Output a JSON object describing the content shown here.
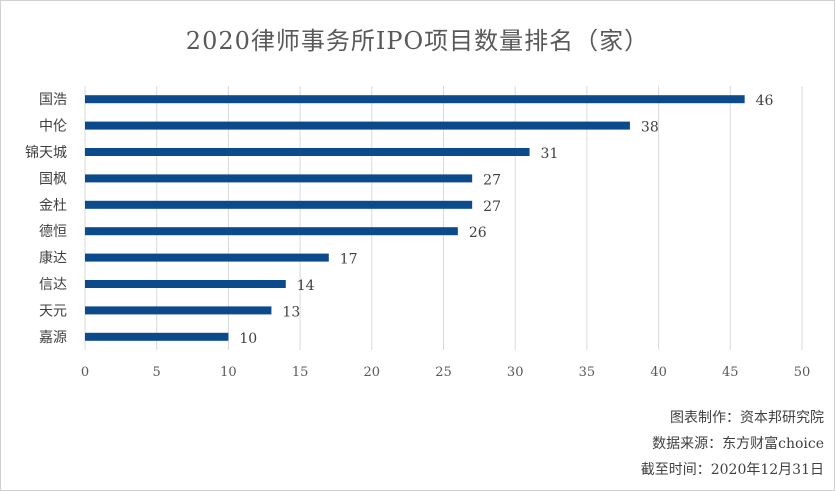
{
  "chart_data": {
    "type": "bar",
    "orientation": "horizontal",
    "title": "2020律师事务所IPO项目数量排名（家）",
    "categories": [
      "国浩",
      "中伦",
      "锦天城",
      "国枫",
      "金杜",
      "德恒",
      "康达",
      "信达",
      "天元",
      "嘉源"
    ],
    "values": [
      46,
      38,
      31,
      27,
      27,
      26,
      17,
      14,
      13,
      10
    ],
    "xlim": [
      0,
      50
    ],
    "xticks": [
      0,
      5,
      10,
      15,
      20,
      25,
      30,
      35,
      40,
      45,
      50
    ],
    "grid": true,
    "legend": "none",
    "bar_color": "#0b4a8b",
    "grid_color": "#d9d9d9"
  },
  "footer": {
    "maker": "图表制作：资本邦研究院",
    "source": "数据来源：东方财富choice",
    "date": "截至时间：2020年12月31日"
  }
}
